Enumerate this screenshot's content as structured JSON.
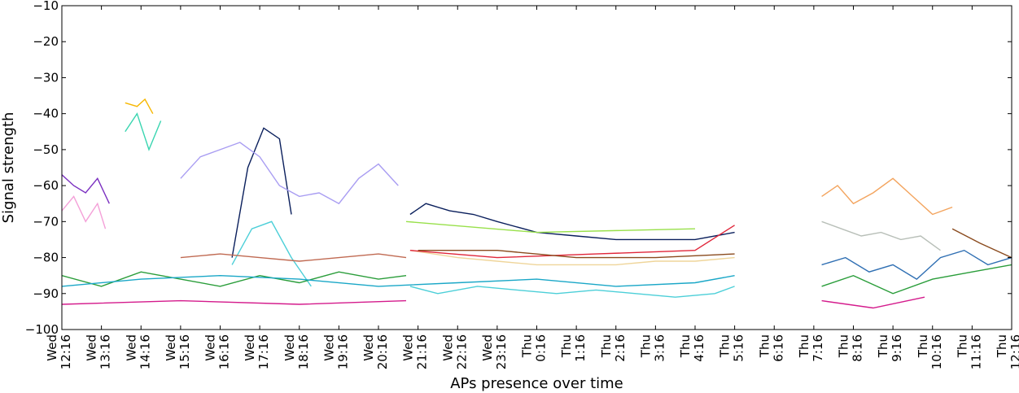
{
  "chart_data": {
    "type": "line",
    "xlabel": "APs presence over time",
    "ylabel": "Signal strength",
    "ylim": [
      -100,
      -10
    ],
    "yticks": [
      -100,
      -90,
      -80,
      -70,
      -60,
      -50,
      -40,
      -30,
      -20,
      -10
    ],
    "ytick_labels": [
      "−100",
      "−90",
      "−80",
      "−70",
      "−60",
      "−50",
      "−40",
      "−30",
      "−20",
      "−10"
    ],
    "x_unit": "hours since Wed 12:16",
    "xlim": [
      0,
      24
    ],
    "xticks": [
      {
        "day": "Wed",
        "time": "12:16"
      },
      {
        "day": "Wed",
        "time": "13:16"
      },
      {
        "day": "Wed",
        "time": "14:16"
      },
      {
        "day": "Wed",
        "time": "15:16"
      },
      {
        "day": "Wed",
        "time": "16:16"
      },
      {
        "day": "Wed",
        "time": "17:16"
      },
      {
        "day": "Wed",
        "time": "18:16"
      },
      {
        "day": "Wed",
        "time": "19:16"
      },
      {
        "day": "Wed",
        "time": "20:16"
      },
      {
        "day": "Wed",
        "time": "21:16"
      },
      {
        "day": "Wed",
        "time": "22:16"
      },
      {
        "day": "Wed",
        "time": "23:16"
      },
      {
        "day": "Thu",
        "time": "0:16"
      },
      {
        "day": "Thu",
        "time": "1:16"
      },
      {
        "day": "Thu",
        "time": "2:16"
      },
      {
        "day": "Thu",
        "time": "3:16"
      },
      {
        "day": "Thu",
        "time": "4:16"
      },
      {
        "day": "Thu",
        "time": "5:16"
      },
      {
        "day": "Thu",
        "time": "6:16"
      },
      {
        "day": "Thu",
        "time": "7:16"
      },
      {
        "day": "Thu",
        "time": "8:16"
      },
      {
        "day": "Thu",
        "time": "9:16"
      },
      {
        "day": "Thu",
        "time": "10:16"
      },
      {
        "day": "Thu",
        "time": "11:16"
      },
      {
        "day": "Thu",
        "time": "12:16"
      }
    ],
    "grid": false,
    "legend": "none",
    "series": [
      {
        "color": "#0a1f5c",
        "segments": [
          {
            "x": [
              8.8,
              9.2,
              9.8,
              10.4,
              11.0,
              12.0,
              13.0,
              14.0,
              15.0,
              16.0,
              17.0
            ],
            "y": [
              -68,
              -65,
              -67,
              -68,
              -70,
              -73,
              -74,
              -75,
              -75,
              -75,
              -73
            ]
          },
          {
            "x": [
              4.3,
              4.7,
              5.1,
              5.5,
              5.8
            ],
            "y": [
              -80,
              -55,
              -44,
              -47,
              -68
            ]
          }
        ]
      },
      {
        "color": "#4ccfd8",
        "segments": [
          {
            "x": [
              8.8,
              9.5,
              10.5,
              11.5,
              12.5,
              13.5,
              14.5,
              15.5,
              16.5,
              17.0
            ],
            "y": [
              -88,
              -90,
              -88,
              -89,
              -90,
              -89,
              -90,
              -91,
              -90,
              -88
            ]
          },
          {
            "x": [
              4.3,
              4.8,
              5.3,
              5.8,
              6.3
            ],
            "y": [
              -82,
              -72,
              -70,
              -80,
              -88
            ]
          }
        ]
      },
      {
        "color": "#a99df2",
        "segments": [
          {
            "x": [
              3.0,
              3.5,
              4.0,
              4.5,
              5.0,
              5.5,
              6.0,
              6.5,
              7.0,
              7.5,
              8.0,
              8.5
            ],
            "y": [
              -58,
              -52,
              -50,
              -48,
              -52,
              -60,
              -63,
              -62,
              -65,
              -58,
              -54,
              -60
            ]
          }
        ]
      },
      {
        "color": "#efd59a",
        "segments": [
          {
            "x": [
              8.8,
              10.0,
              11.0,
              12.0,
              13.0,
              14.0,
              15.0,
              16.0,
              17.0
            ],
            "y": [
              -78,
              -80,
              -81,
              -82,
              -82,
              -82,
              -81,
              -81,
              -80
            ]
          }
        ]
      },
      {
        "color": "#f3a45e",
        "segments": [
          {
            "x": [
              19.2,
              19.6,
              20.0,
              20.5,
              21.0,
              21.5,
              22.0,
              22.5
            ],
            "y": [
              -63,
              -60,
              -65,
              -62,
              -58,
              -63,
              -68,
              -66
            ]
          }
        ]
      },
      {
        "color": "#b8bfb8",
        "segments": [
          {
            "x": [
              19.2,
              19.7,
              20.2,
              20.7,
              21.2,
              21.7,
              22.2
            ],
            "y": [
              -70,
              -72,
              -74,
              -73,
              -75,
              -74,
              -78
            ]
          }
        ]
      },
      {
        "color": "#2f6fb3",
        "segments": [
          {
            "x": [
              19.2,
              19.8,
              20.4,
              21.0,
              21.6,
              22.2,
              22.8,
              23.4,
              24.0
            ],
            "y": [
              -82,
              -80,
              -84,
              -82,
              -86,
              -80,
              -78,
              -82,
              -80
            ]
          }
        ]
      },
      {
        "color": "#7a2fc0",
        "segments": [
          {
            "x": [
              0.0,
              0.3,
              0.6,
              0.9,
              1.2
            ],
            "y": [
              -57,
              -60,
              -62,
              -58,
              -65
            ]
          }
        ]
      },
      {
        "color": "#f4a0d8",
        "segments": [
          {
            "x": [
              0.0,
              0.3,
              0.6,
              0.9,
              1.1
            ],
            "y": [
              -67,
              -63,
              -70,
              -65,
              -72
            ]
          }
        ]
      },
      {
        "color": "#39d5b0",
        "segments": [
          {
            "x": [
              1.6,
              1.9,
              2.2,
              2.5
            ],
            "y": [
              -45,
              -40,
              -50,
              -42
            ]
          }
        ]
      },
      {
        "color": "#f7b700",
        "segments": [
          {
            "x": [
              1.6,
              1.9,
              2.1,
              2.3
            ],
            "y": [
              -37,
              -38,
              -36,
              -40
            ]
          }
        ]
      },
      {
        "color": "#2a9d3a",
        "segments": [
          {
            "x": [
              0.0,
              1.0,
              2.0,
              3.0,
              4.0,
              5.0,
              6.0,
              7.0,
              8.0,
              8.7
            ],
            "y": [
              -85,
              -88,
              -84,
              -86,
              -88,
              -85,
              -87,
              -84,
              -86,
              -85
            ]
          },
          {
            "x": [
              19.2,
              20.0,
              21.0,
              22.0,
              23.0,
              24.0
            ],
            "y": [
              -88,
              -85,
              -90,
              -86,
              -84,
              -82
            ]
          }
        ]
      },
      {
        "color": "#c06a52",
        "segments": [
          {
            "x": [
              3.0,
              4.0,
              5.0,
              6.0,
              7.0,
              8.0,
              8.7
            ],
            "y": [
              -80,
              -79,
              -80,
              -81,
              -80,
              -79,
              -80
            ]
          }
        ]
      },
      {
        "color": "#1aa7c7",
        "segments": [
          {
            "x": [
              0.0,
              2.0,
              4.0,
              6.0,
              8.0,
              10.0,
              12.0,
              14.0,
              16.0,
              17.0
            ],
            "y": [
              -88,
              -86,
              -85,
              -86,
              -88,
              -87,
              -86,
              -88,
              -87,
              -85
            ]
          }
        ]
      },
      {
        "color": "#d41b8c",
        "segments": [
          {
            "x": [
              0.0,
              3.0,
              6.0,
              8.7
            ],
            "y": [
              -93,
              -92,
              -93,
              -92
            ]
          },
          {
            "x": [
              19.2,
              20.5,
              21.8
            ],
            "y": [
              -92,
              -94,
              -91
            ]
          }
        ]
      },
      {
        "color": "#e0263a",
        "segments": [
          {
            "x": [
              8.8,
              11.0,
              13.5,
              16.0,
              17.0
            ],
            "y": [
              -78,
              -80,
              -79,
              -78,
              -71
            ]
          }
        ]
      },
      {
        "color": "#8a4a1d",
        "segments": [
          {
            "x": [
              9.0,
              11.0,
              13.0,
              15.0,
              17.0
            ],
            "y": [
              -78,
              -78,
              -80,
              -80,
              -79
            ]
          },
          {
            "x": [
              22.5,
              23.2,
              24.0
            ],
            "y": [
              -72,
              -76,
              -80
            ]
          }
        ]
      },
      {
        "color": "#98e04a",
        "segments": [
          {
            "x": [
              8.7,
              12.0,
              16.0
            ],
            "y": [
              -70,
              -73,
              -72
            ]
          }
        ]
      }
    ]
  }
}
